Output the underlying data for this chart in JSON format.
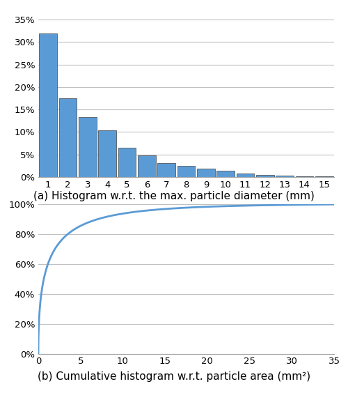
{
  "hist_values": [
    0.32,
    0.175,
    0.133,
    0.103,
    0.065,
    0.048,
    0.031,
    0.024,
    0.019,
    0.013,
    0.007,
    0.004,
    0.003,
    0.002,
    0.001
  ],
  "hist_xticks": [
    1,
    2,
    3,
    4,
    5,
    6,
    7,
    8,
    9,
    10,
    11,
    12,
    13,
    14,
    15
  ],
  "hist_caption": "(a) Histogram w.r.t. the max. particle diameter (mm)",
  "hist_bar_color": "#5B9BD5",
  "hist_bar_edge_color": "#404040",
  "hist_ylim": [
    0,
    0.35
  ],
  "hist_yticks": [
    0,
    0.05,
    0.1,
    0.15,
    0.2,
    0.25,
    0.3,
    0.35
  ],
  "hist_ytick_labels": [
    "0%",
    "5%",
    "10%",
    "15%",
    "20%",
    "25%",
    "30%",
    "35%"
  ],
  "cum_xlim": [
    0,
    35
  ],
  "cum_ylim": [
    0,
    1.0
  ],
  "cum_xticks": [
    0,
    5,
    10,
    15,
    20,
    25,
    30,
    35
  ],
  "cum_yticks": [
    0,
    0.2,
    0.4,
    0.6,
    0.8,
    1.0
  ],
  "cum_ytick_labels": [
    "0%",
    "20%",
    "40%",
    "60%",
    "80%",
    "100%"
  ],
  "cum_line_color": "#5B9BD5",
  "cum_caption": "(b) Cumulative histogram w.r.t. particle area (mm²)",
  "background_color": "#ffffff",
  "grid_color": "#c0c0c0",
  "caption_fontsize": 11,
  "tick_fontsize": 9.5
}
